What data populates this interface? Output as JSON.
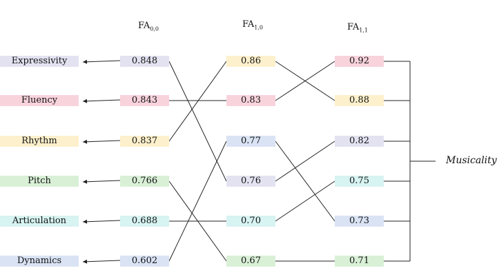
{
  "headers": [
    {
      "base": "FA",
      "sub": "0,0"
    },
    {
      "base": "FA",
      "sub": "1,0"
    },
    {
      "base": "FA",
      "sub": "1,1"
    }
  ],
  "output_label": "Musicality",
  "colors": {
    "purple": "#e3e2f1",
    "pink": "#f8d3dc",
    "yellow": "#fdf0cc",
    "green": "#d9f0d7",
    "cyan": "#d7f3f2",
    "blue": "#d9e3f4"
  },
  "labels": [
    {
      "text": "Expressivity",
      "color": "purple"
    },
    {
      "text": "Fluency",
      "color": "pink"
    },
    {
      "text": "Rhythm",
      "color": "yellow"
    },
    {
      "text": "Pitch",
      "color": "green"
    },
    {
      "text": "Articulation",
      "color": "cyan"
    },
    {
      "text": "Dynamics",
      "color": "blue"
    }
  ],
  "columns": [
    [
      {
        "value": "0.848",
        "color": "purple"
      },
      {
        "value": "0.843",
        "color": "pink"
      },
      {
        "value": "0.837",
        "color": "yellow"
      },
      {
        "value": "0.766",
        "color": "green"
      },
      {
        "value": "0.688",
        "color": "cyan"
      },
      {
        "value": "0.602",
        "color": "blue"
      }
    ],
    [
      {
        "value": "0.86",
        "color": "yellow"
      },
      {
        "value": "0.83",
        "color": "pink"
      },
      {
        "value": "0.77",
        "color": "blue"
      },
      {
        "value": "0.76",
        "color": "purple"
      },
      {
        "value": "0.70",
        "color": "cyan"
      },
      {
        "value": "0.67",
        "color": "green"
      }
    ],
    [
      {
        "value": "0.92",
        "color": "pink"
      },
      {
        "value": "0.88",
        "color": "yellow"
      },
      {
        "value": "0.82",
        "color": "purple"
      },
      {
        "value": "0.75",
        "color": "cyan"
      },
      {
        "value": "0.73",
        "color": "blue"
      },
      {
        "value": "0.71",
        "color": "green"
      }
    ]
  ]
}
